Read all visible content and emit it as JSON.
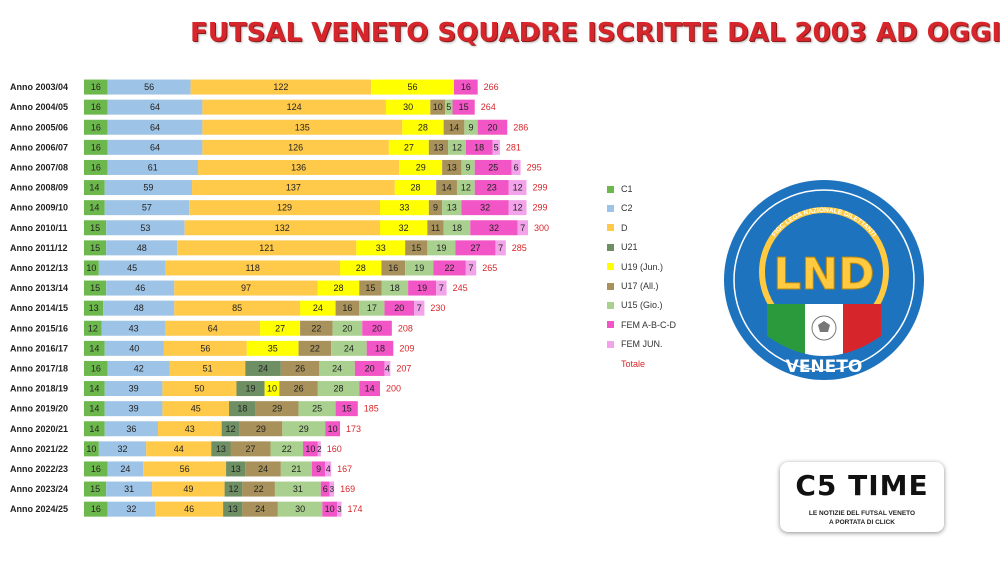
{
  "title": "FUTSAL VENETO SQUADRE ISCRITTE DAL 2003 AD OGGI",
  "colors": {
    "C1": "#6db84c",
    "C2": "#9dc3e6",
    "D": "#ffc94a",
    "U21": "#6e8e64",
    "U19": "#ffff00",
    "U17": "#a8915a",
    "U15": "#a9d08e",
    "FEM": "#f256c6",
    "FEMJUN": "#f2a3e9",
    "total": "#d7262b"
  },
  "chart_data": {
    "type": "bar",
    "orientation": "horizontal",
    "stacked": true,
    "title": "FUTSAL VENETO SQUADRE ISCRITTE DAL 2003 AD OGGI",
    "legend_position": "right",
    "categories": [
      "Anno 2003/04",
      "Anno 2004/05",
      "Anno 2005/06",
      "Anno 2006/07",
      "Anno 2007/08",
      "Anno 2008/09",
      "Anno 2009/10",
      "Anno 2010/11",
      "Anno 2011/12",
      "Anno 2012/13",
      "Anno 2013/14",
      "Anno 2014/15",
      "Anno 2015/16",
      "Anno 2016/17",
      "Anno 2017/18",
      "Anno 2018/19",
      "Anno 2019/20",
      "Anno 2020/21",
      "Anno 2021/22",
      "Anno 2022/23",
      "Anno 2023/24",
      "Anno 2024/25"
    ],
    "series": [
      {
        "name": "C1",
        "color": "#6db84c",
        "values": [
          16,
          16,
          16,
          16,
          16,
          14,
          14,
          15,
          15,
          10,
          15,
          13,
          12,
          14,
          16,
          14,
          14,
          14,
          10,
          16,
          15,
          16
        ]
      },
      {
        "name": "C2",
        "color": "#9dc3e6",
        "values": [
          56,
          64,
          64,
          64,
          61,
          59,
          57,
          53,
          48,
          45,
          46,
          48,
          43,
          40,
          42,
          39,
          39,
          36,
          32,
          24,
          31,
          32
        ]
      },
      {
        "name": "D",
        "color": "#ffc94a",
        "values": [
          122,
          124,
          135,
          126,
          136,
          137,
          129,
          132,
          121,
          118,
          97,
          85,
          64,
          56,
          51,
          50,
          45,
          43,
          44,
          56,
          49,
          46
        ]
      },
      {
        "name": "U21",
        "color": "#6e8e64",
        "values": [
          null,
          null,
          null,
          null,
          null,
          null,
          null,
          null,
          null,
          null,
          null,
          null,
          null,
          null,
          24,
          19,
          18,
          12,
          13,
          13,
          12,
          13
        ]
      },
      {
        "name": "U19 (Jun.)",
        "color": "#ffff00",
        "values": [
          56,
          30,
          28,
          27,
          29,
          28,
          33,
          32,
          33,
          28,
          28,
          24,
          27,
          35,
          null,
          10,
          null,
          null,
          null,
          null,
          null,
          null
        ]
      },
      {
        "name": "U17  (All.)",
        "color": "#a8915a",
        "values": [
          null,
          10,
          14,
          13,
          13,
          14,
          9,
          11,
          15,
          16,
          15,
          16,
          22,
          22,
          26,
          26,
          29,
          29,
          27,
          24,
          22,
          24
        ]
      },
      {
        "name": "U15 (Gio.)",
        "color": "#a9d08e",
        "values": [
          null,
          5,
          9,
          12,
          9,
          12,
          13,
          18,
          19,
          19,
          18,
          17,
          20,
          24,
          24,
          28,
          25,
          29,
          22,
          21,
          31,
          30
        ]
      },
      {
        "name": "FEM A-B-C-D",
        "color": "#f256c6",
        "values": [
          16,
          15,
          20,
          18,
          25,
          23,
          32,
          32,
          27,
          22,
          19,
          20,
          20,
          18,
          20,
          14,
          15,
          10,
          10,
          9,
          6,
          10
        ]
      },
      {
        "name": "FEM JUN.",
        "color": "#f2a3e9",
        "values": [
          null,
          null,
          null,
          5,
          6,
          12,
          12,
          7,
          7,
          7,
          7,
          7,
          null,
          null,
          4,
          null,
          null,
          null,
          2,
          4,
          3,
          3
        ]
      }
    ],
    "totals_label": "Totale",
    "totals": [
      266,
      264,
      286,
      281,
      295,
      299,
      299,
      300,
      285,
      265,
      245,
      230,
      208,
      209,
      207,
      200,
      185,
      173,
      160,
      167,
      169,
      174
    ]
  },
  "legend": [
    "C1",
    "C2",
    "D",
    "U21",
    "U19 (Jun.)",
    "U17  (All.)",
    "U15 (Gio.)",
    "FEM A-B-C-D",
    "FEM JUN.",
    "Totale"
  ],
  "lnd_logo": {
    "top_text": "FIGC LEGA NAZIONALE DILETTANTI",
    "main_text": "LND",
    "bottom_text": "VENETO"
  },
  "c5_logo": {
    "title": "C5 TIME",
    "sub1": "LE NOTIZIE DEL FUTSAL VENETO",
    "sub2": "A PORTATA DI CLICK"
  }
}
